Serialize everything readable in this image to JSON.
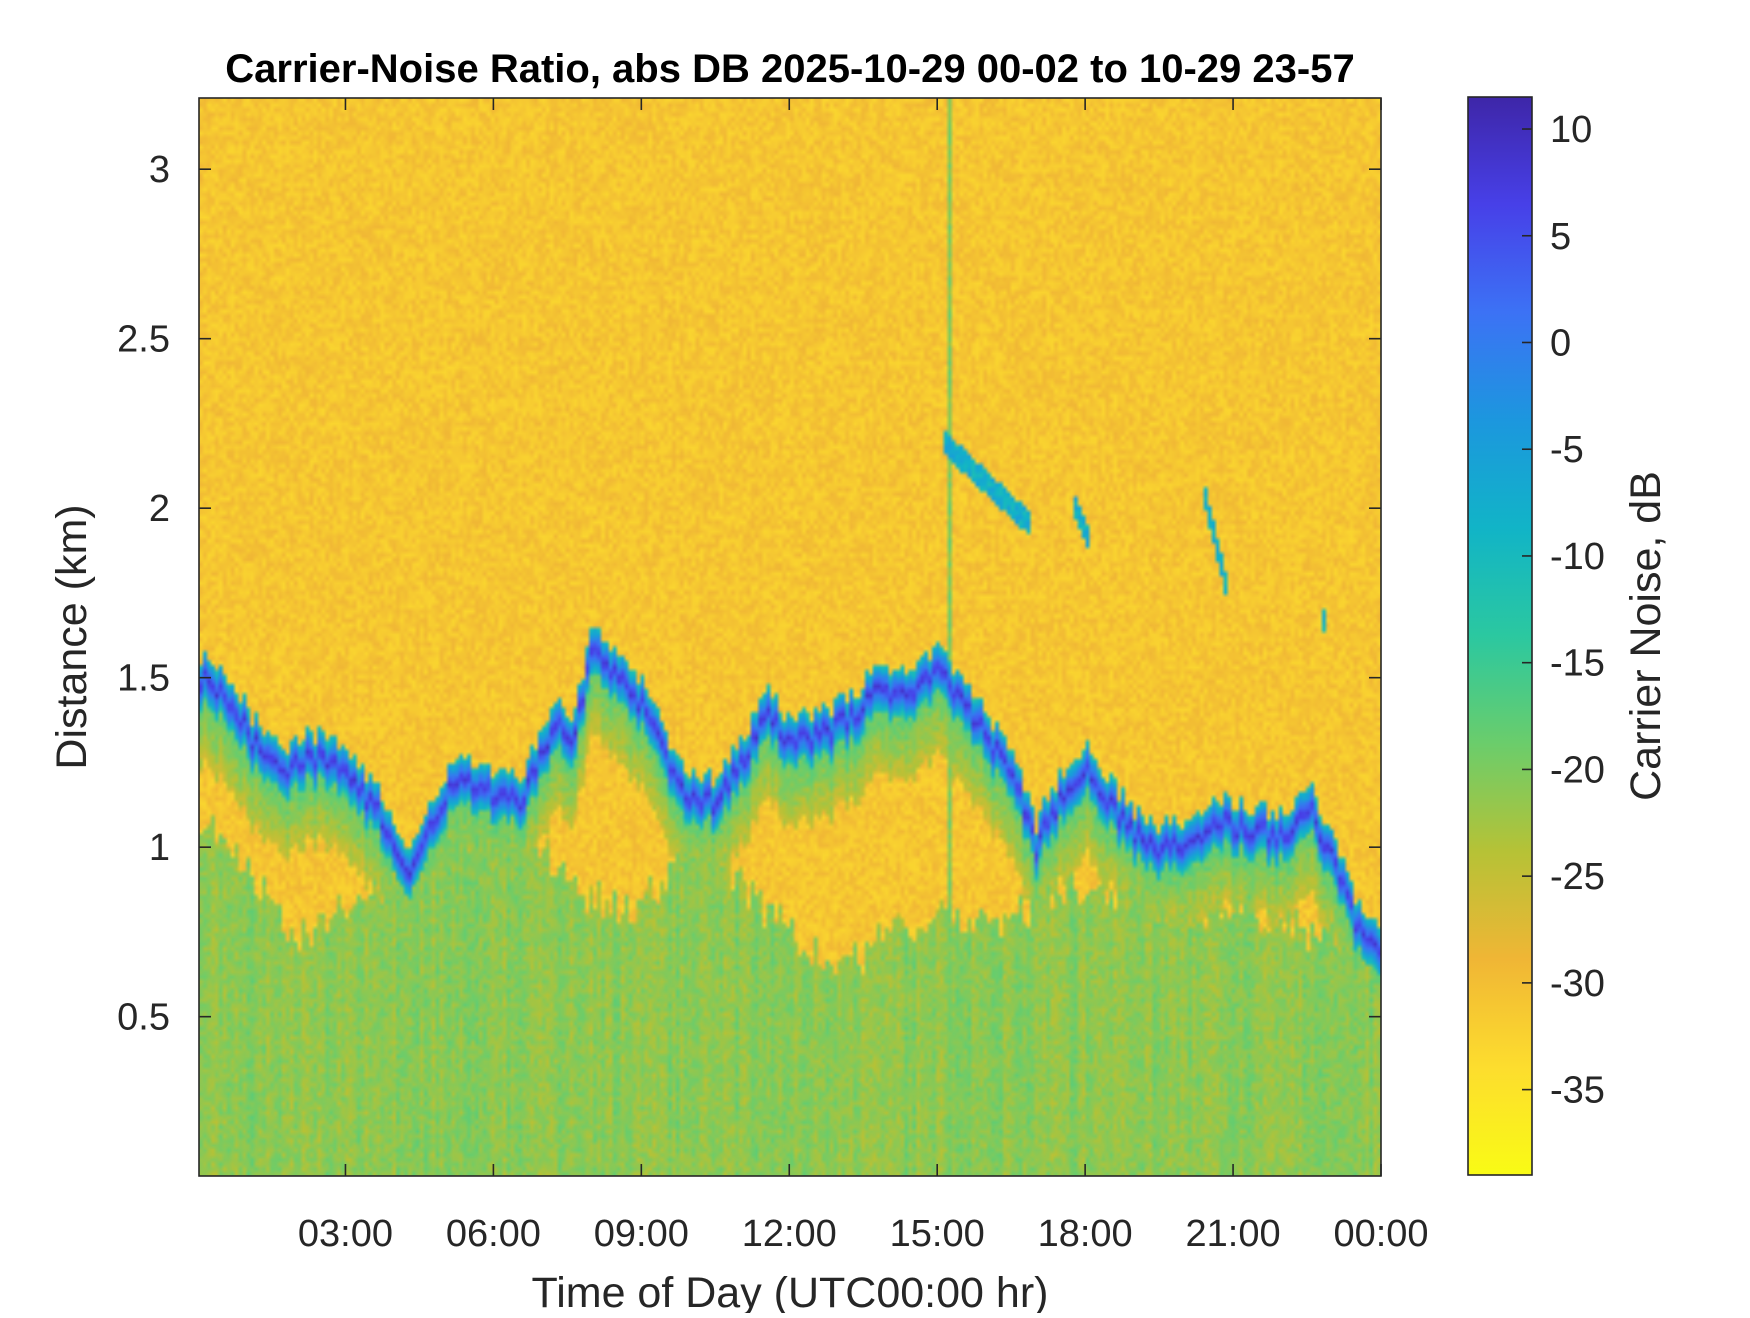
{
  "chart_data": {
    "type": "heatmap",
    "title": "Carrier-Noise Ratio, abs DB 2025-10-29 00-02 to 10-29 23-57",
    "xlabel": "Time of Day (UTC00:00 hr)",
    "ylabel": "Distance (km)",
    "x_ticks": [
      "03:00",
      "06:00",
      "09:00",
      "12:00",
      "15:00",
      "18:00",
      "21:00",
      "00:00"
    ],
    "x_tick_hours": [
      3,
      6,
      9,
      12,
      15,
      18,
      21,
      24
    ],
    "xlim_hours": [
      0.03,
      24.0
    ],
    "y_ticks": [
      "0.5",
      "1",
      "1.5",
      "2",
      "2.5",
      "3"
    ],
    "y_tick_values": [
      0.5,
      1,
      1.5,
      2,
      2.5,
      3
    ],
    "ylim": [
      0.03,
      3.21
    ],
    "colorbar": {
      "label": "Carrier Noise, dB",
      "ticks": [
        "10",
        "5",
        "0",
        "-5",
        "-10",
        "-15",
        "-20",
        "-25",
        "-30",
        "-35"
      ],
      "tick_values": [
        10,
        5,
        0,
        -5,
        -10,
        -15,
        -20,
        -25,
        -30,
        -35
      ],
      "range": [
        -39,
        11.5
      ],
      "colormap": "parula-reversed",
      "colors": [
        "#3e26a8",
        "#4740e8",
        "#3c72f5",
        "#1c97de",
        "#11b4c7",
        "#2bc8a0",
        "#6bcd6b",
        "#b6c236",
        "#f0b635",
        "#fddd2e",
        "#f9fb15"
      ]
    },
    "layers": {
      "background_db": -31,
      "near_field_db": -21,
      "layer_peak_db": 8,
      "layer_edge_db": -12
    },
    "aerosol_layer_top_km": [
      [
        0.1,
        1.55
      ],
      [
        0.6,
        1.48
      ],
      [
        1.2,
        1.35
      ],
      [
        1.8,
        1.27
      ],
      [
        2.3,
        1.32
      ],
      [
        2.8,
        1.28
      ],
      [
        3.3,
        1.22
      ],
      [
        3.8,
        1.12
      ],
      [
        4.3,
        0.98
      ],
      [
        4.6,
        1.05
      ],
      [
        5.0,
        1.2
      ],
      [
        5.5,
        1.24
      ],
      [
        6.0,
        1.2
      ],
      [
        6.5,
        1.18
      ],
      [
        6.9,
        1.28
      ],
      [
        7.2,
        1.42
      ],
      [
        7.6,
        1.35
      ],
      [
        8.0,
        1.62
      ],
      [
        8.6,
        1.56
      ],
      [
        9.2,
        1.42
      ],
      [
        9.8,
        1.22
      ],
      [
        10.5,
        1.18
      ],
      [
        11.0,
        1.28
      ],
      [
        11.5,
        1.45
      ],
      [
        12.0,
        1.35
      ],
      [
        12.6,
        1.38
      ],
      [
        13.2,
        1.42
      ],
      [
        13.8,
        1.52
      ],
      [
        14.4,
        1.5
      ],
      [
        15.0,
        1.58
      ],
      [
        15.5,
        1.48
      ],
      [
        16.0,
        1.38
      ],
      [
        16.6,
        1.25
      ],
      [
        17.0,
        1.05
      ],
      [
        17.5,
        1.2
      ],
      [
        18.0,
        1.28
      ],
      [
        18.5,
        1.18
      ],
      [
        19.0,
        1.08
      ],
      [
        19.6,
        1.05
      ],
      [
        20.2,
        1.08
      ],
      [
        20.8,
        1.12
      ],
      [
        21.4,
        1.1
      ],
      [
        22.0,
        1.08
      ],
      [
        22.6,
        1.15
      ],
      [
        23.2,
        0.95
      ],
      [
        23.6,
        0.78
      ],
      [
        24.0,
        0.72
      ]
    ],
    "near_field_top_km": [
      [
        0.1,
        1.1
      ],
      [
        1.0,
        0.95
      ],
      [
        2.0,
        0.72
      ],
      [
        3.0,
        0.85
      ],
      [
        4.0,
        0.9
      ],
      [
        5.0,
        1.0
      ],
      [
        6.0,
        1.05
      ],
      [
        7.0,
        1.0
      ],
      [
        8.0,
        0.85
      ],
      [
        9.0,
        0.82
      ],
      [
        10.0,
        1.0
      ],
      [
        11.0,
        0.9
      ],
      [
        12.0,
        0.75
      ],
      [
        13.0,
        0.62
      ],
      [
        14.0,
        0.75
      ],
      [
        15.0,
        0.82
      ],
      [
        16.0,
        0.78
      ],
      [
        17.0,
        0.82
      ],
      [
        18.0,
        0.9
      ],
      [
        19.0,
        0.85
      ],
      [
        20.0,
        0.8
      ],
      [
        21.0,
        0.82
      ],
      [
        22.0,
        0.78
      ],
      [
        23.0,
        0.72
      ],
      [
        24.0,
        0.6
      ]
    ],
    "upper_plumes": [
      {
        "start_hour": 15.1,
        "end_hour": 16.9,
        "top_km": 2.2,
        "bottom_km": 1.95
      },
      {
        "start_hour": 17.8,
        "end_hour": 18.1,
        "top_km": 2.0,
        "bottom_km": 1.9
      },
      {
        "start_hour": 20.4,
        "end_hour": 20.9,
        "top_km": 2.05,
        "bottom_km": 1.75
      },
      {
        "start_hour": 22.8,
        "end_hour": 22.9,
        "top_km": 1.75,
        "bottom_km": 1.55
      }
    ]
  }
}
